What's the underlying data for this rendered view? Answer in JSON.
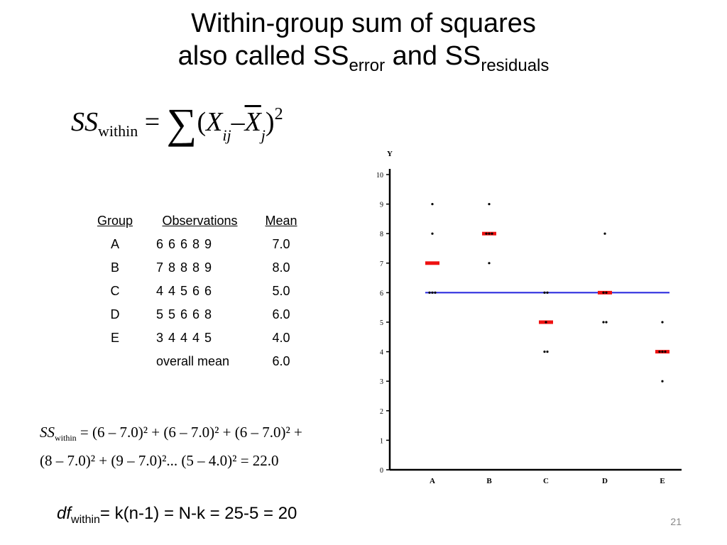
{
  "slide": {
    "title_line1": "Within-group sum of squares",
    "title_line2_prefix": "also called SS",
    "title_line2_sub1": "error",
    "title_line2_mid": " and SS",
    "title_line2_sub2": "residuals",
    "page_number": "21"
  },
  "formula_main": {
    "ss": "SS",
    "ss_sub": "within",
    "equals": " = ",
    "sigma": "∑",
    "open": "(",
    "x": "X",
    "x_sub": "ij",
    "minus": "–",
    "xbar": "X",
    "xbar_sub": "j",
    "close": ")",
    "sup": "2"
  },
  "table": {
    "headers": [
      "Group",
      "Observations",
      "Mean"
    ],
    "rows": [
      {
        "group": "A",
        "observations": "6 6 6 8 9",
        "mean": "7.0"
      },
      {
        "group": "B",
        "observations": "7 8 8 8 9",
        "mean": "8.0"
      },
      {
        "group": "C",
        "observations": "4 4 5 6 6",
        "mean": "5.0"
      },
      {
        "group": "D",
        "observations": "5 5 6 6 8",
        "mean": "6.0"
      },
      {
        "group": "E",
        "observations": "3 4 4 4 5",
        "mean": "4.0"
      }
    ],
    "overall_label": "overall mean",
    "overall_value": "6.0"
  },
  "ss_calc": {
    "ss": "SS",
    "ss_sub": "within",
    "line1_rest": " = (6 – 7.0)² + (6 – 7.0)² + (6 – 7.0)² +",
    "line2": "(8 – 7.0)² + (9 – 7.0)²... (5 – 4.0)² = 22.0"
  },
  "df": {
    "df": "df",
    "df_sub": "within",
    "rest": "= k(n-1) = N-k = 25-5 = 20"
  },
  "chart_data": {
    "type": "scatter",
    "ylabel": "Y",
    "xlabel": "",
    "categories": [
      "A",
      "B",
      "C",
      "D",
      "E"
    ],
    "y_ticks": [
      0,
      1,
      2,
      3,
      4,
      5,
      6,
      7,
      8,
      9,
      10
    ],
    "ylim": [
      0,
      10
    ],
    "grid": false,
    "points": {
      "A": [
        6,
        6,
        6,
        8,
        9
      ],
      "B": [
        7,
        8,
        8,
        8,
        9
      ],
      "C": [
        4,
        4,
        5,
        6,
        6
      ],
      "D": [
        5,
        5,
        6,
        6,
        8
      ],
      "E": [
        3,
        4,
        4,
        4,
        5
      ]
    },
    "group_means": [
      7.0,
      8.0,
      5.0,
      6.0,
      4.0
    ],
    "overall_mean": 6.0,
    "colors": {
      "points": "#000000",
      "group_mean": "#ee1111",
      "overall_mean": "#2222dd"
    }
  }
}
